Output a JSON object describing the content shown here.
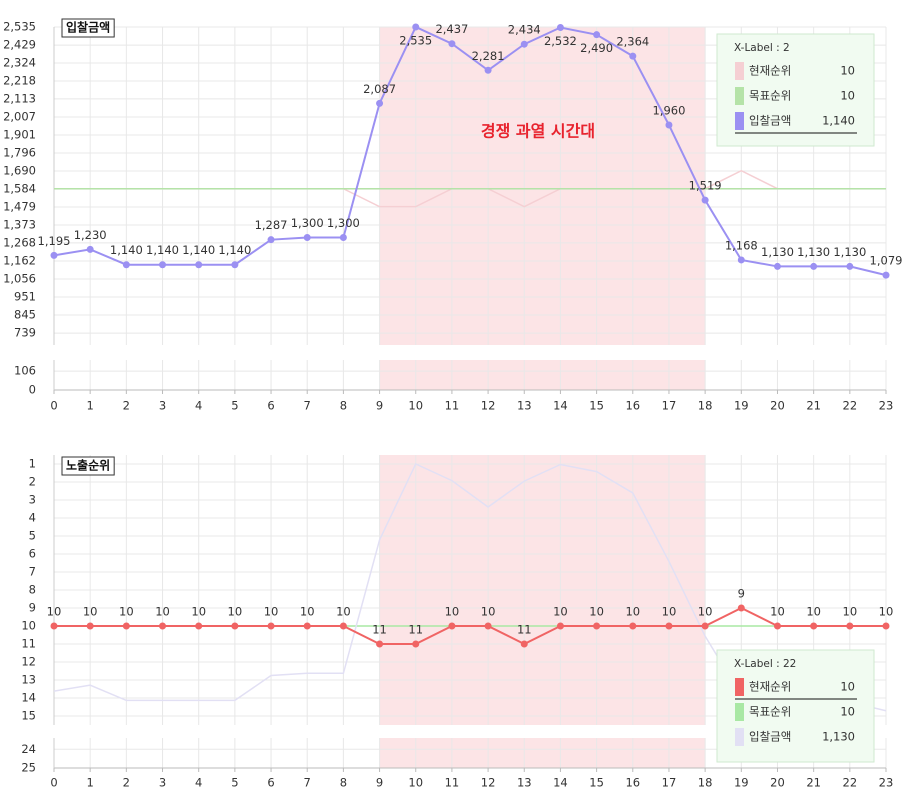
{
  "chart_data": [
    {
      "type": "line",
      "title": "입찰금액",
      "x": [
        0,
        1,
        2,
        3,
        4,
        5,
        6,
        7,
        8,
        9,
        10,
        11,
        12,
        13,
        14,
        15,
        16,
        17,
        18,
        19,
        20,
        21,
        22,
        23
      ],
      "xlim": [
        0,
        23
      ],
      "xticks": [
        0,
        1,
        2,
        3,
        4,
        5,
        6,
        7,
        8,
        9,
        10,
        11,
        12,
        13,
        14,
        15,
        16,
        17,
        18,
        19,
        20,
        21,
        22,
        23
      ],
      "ylim": [
        669,
        2535
      ],
      "yticks": [
        {
          "value": 2535,
          "label": "2,535"
        },
        {
          "value": 2429,
          "label": "2,429"
        },
        {
          "value": 2324,
          "label": "2,324"
        },
        {
          "value": 2218,
          "label": "2,218"
        },
        {
          "value": 2113,
          "label": "2,113"
        },
        {
          "value": 2007,
          "label": "2,007"
        },
        {
          "value": 1901,
          "label": "1,901"
        },
        {
          "value": 1796,
          "label": "1,796"
        },
        {
          "value": 1690,
          "label": "1,690"
        },
        {
          "value": 1584,
          "label": "1,584"
        },
        {
          "value": 1479,
          "label": "1,479"
        },
        {
          "value": 1373,
          "label": "1,373"
        },
        {
          "value": 1268,
          "label": "1,268"
        },
        {
          "value": 1162,
          "label": "1,162"
        },
        {
          "value": 1056,
          "label": "1,056"
        },
        {
          "value": 951,
          "label": "951"
        },
        {
          "value": 845,
          "label": "845"
        },
        {
          "value": 739,
          "label": "739"
        }
      ],
      "y2lim": [
        18.7,
        1
      ],
      "grid": true,
      "lower_pane": {
        "ylim": [
          0,
          168
        ],
        "yticks": [
          106,
          0
        ]
      },
      "highlight": {
        "x": [
          9,
          18
        ],
        "color": "#fce4e6",
        "label": "경쟁 과열 시간대",
        "label_color": "#e8232e"
      },
      "series": [
        {
          "name": "현재순위",
          "color": "#f5cfd3",
          "axis": "y2",
          "values": [
            10,
            10,
            10,
            10,
            10,
            10,
            10,
            10,
            10,
            11,
            11,
            10,
            10,
            11,
            10,
            10,
            10,
            10,
            10,
            9,
            10,
            10,
            10,
            10
          ]
        },
        {
          "name": "목표순위",
          "color": "#b5e3a8",
          "axis": "y2",
          "values": [
            10,
            10,
            10,
            10,
            10,
            10,
            10,
            10,
            10,
            10,
            10,
            10,
            10,
            10,
            10,
            10,
            10,
            10,
            10,
            10,
            10,
            10,
            10,
            10
          ]
        },
        {
          "name": "입찰금액",
          "color": "#9b90f2",
          "show_labels": true,
          "values": [
            1195,
            1230,
            1140,
            1140,
            1140,
            1140,
            1287,
            1300,
            1300,
            2087,
            2535,
            2437,
            2281,
            2434,
            2532,
            2490,
            2364,
            1960,
            1519,
            1168,
            1130,
            1130,
            1130,
            1079
          ],
          "value_labels": [
            "1,195",
            "1,230",
            "1,140",
            "1,140",
            "1,140",
            "1,140",
            "1,287",
            "1,300",
            "1,300",
            "2,087",
            "2,535",
            "2,437",
            "2,281",
            "2,434",
            "2,532",
            "2,490",
            "2,364",
            "1,960",
            "1,519",
            "1,168",
            "1,130",
            "1,130",
            "1,130",
            "1,079"
          ]
        }
      ],
      "tooltip": {
        "title": "X-Label : 2",
        "values": [
          10,
          10,
          {
            "value": 1140,
            "label": "1,140"
          }
        ]
      }
    },
    {
      "type": "line",
      "title": "노출순위",
      "x": [
        0,
        1,
        2,
        3,
        4,
        5,
        6,
        7,
        8,
        9,
        10,
        11,
        12,
        13,
        14,
        15,
        16,
        17,
        18,
        19,
        20,
        21,
        22,
        23
      ],
      "xlim": [
        0,
        23
      ],
      "xticks": [
        0,
        1,
        2,
        3,
        4,
        5,
        6,
        7,
        8,
        9,
        10,
        11,
        12,
        13,
        14,
        15,
        16,
        17,
        18,
        19,
        20,
        21,
        22,
        23
      ],
      "ylim": [
        15.5,
        0.5
      ],
      "yticks": [
        1,
        2,
        3,
        4,
        5,
        6,
        7,
        8,
        9,
        10,
        11,
        12,
        13,
        14,
        15
      ],
      "y2lim": [
        995,
        2588
      ],
      "grid": true,
      "lower_pane": {
        "ylim": [
          25,
          23.4
        ],
        "yticks": [
          24,
          25
        ]
      },
      "highlight": {
        "x": [
          9,
          18
        ],
        "color": "#fce4e6"
      },
      "series": [
        {
          "name": "현재순위",
          "color": "#f06464",
          "show_labels": true,
          "values": [
            10,
            10,
            10,
            10,
            10,
            10,
            10,
            10,
            10,
            11,
            11,
            10,
            10,
            11,
            10,
            10,
            10,
            10,
            10,
            9,
            10,
            10,
            10,
            10
          ]
        },
        {
          "name": "목표순위",
          "color": "#a9e8a4",
          "values": [
            10,
            10,
            10,
            10,
            10,
            10,
            10,
            10,
            10,
            10,
            10,
            10,
            10,
            10,
            10,
            10,
            10,
            10,
            10,
            10,
            10,
            10,
            10,
            10
          ]
        },
        {
          "name": "입찰금액",
          "color": "#e2e0f4",
          "axis": "y2",
          "values": [
            1195,
            1230,
            1140,
            1140,
            1140,
            1140,
            1287,
            1300,
            1300,
            2087,
            2535,
            2437,
            2281,
            2434,
            2532,
            2490,
            2364,
            1960,
            1519,
            1168,
            1130,
            1130,
            1130,
            1079
          ]
        }
      ],
      "tooltip": {
        "title": "X-Label : 22",
        "values": [
          10,
          10,
          {
            "value": 1130,
            "label": "1,130"
          }
        ]
      }
    }
  ]
}
